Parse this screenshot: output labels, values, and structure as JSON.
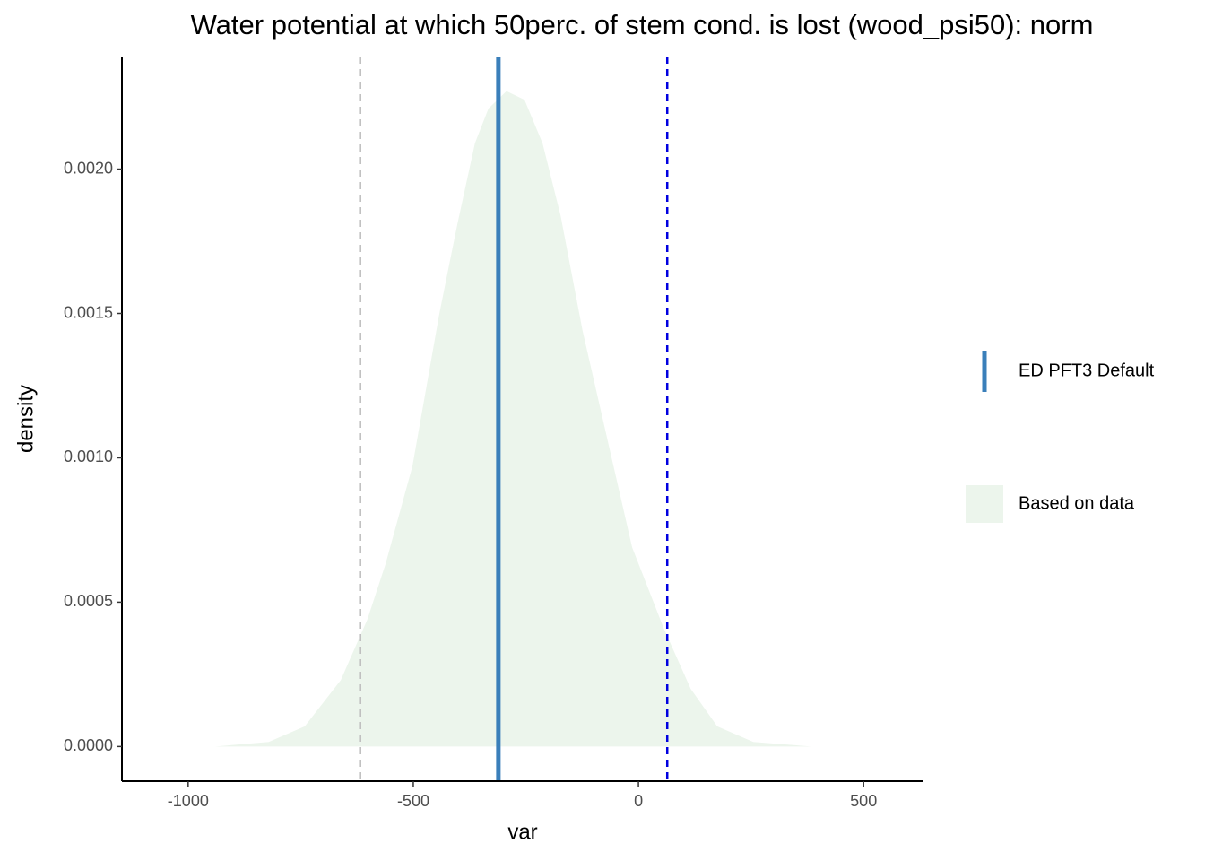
{
  "chart_data": {
    "type": "density",
    "title": "Water potential at which 50perc. of stem cond. is lost (wood_psi50): norm",
    "x_label": "var",
    "y_label": "density",
    "xlim": [
      -1147,
      633
    ],
    "ylim": [
      -0.00012,
      0.00239
    ],
    "xticks": [
      -1000,
      -500,
      0,
      500
    ],
    "yticks": [
      {
        "value": 0,
        "label": "0.0000"
      },
      0.0005,
      {
        "value": 0.001,
        "label": "0.0010"
      },
      0.0015,
      {
        "value": 0.002,
        "label": "0.0020"
      }
    ],
    "series": [
      {
        "name": "Based on data",
        "color": "#ecf5ec",
        "x": [
          -940,
          -821,
          -741,
          -661,
          -602,
          -562,
          -502,
          -442,
          -402,
          -363,
          -333,
          -293,
          -253,
          -213,
          -173,
          -124,
          -64,
          -14,
          56,
          116,
          175,
          255,
          384
        ],
        "values": [
          0,
          1.6e-05,
          7e-05,
          0.00023,
          0.00044,
          0.00063,
          0.00097,
          0.0015,
          0.00181,
          0.00209,
          0.00221,
          0.00227,
          0.00224,
          0.00209,
          0.00184,
          0.00144,
          0.00103,
          0.00069,
          0.00041,
          0.0002,
          7e-05,
          1.6e-05,
          0
        ]
      }
    ],
    "reference_lines": [
      {
        "name": "ED PFT3 Default",
        "x": -311,
        "color": "#3a7fba",
        "dashed": false
      },
      {
        "x": -618,
        "color": "#bdbdbd",
        "dashed": true
      },
      {
        "x": 64,
        "color": "#0000e0",
        "dashed": true
      }
    ]
  }
}
